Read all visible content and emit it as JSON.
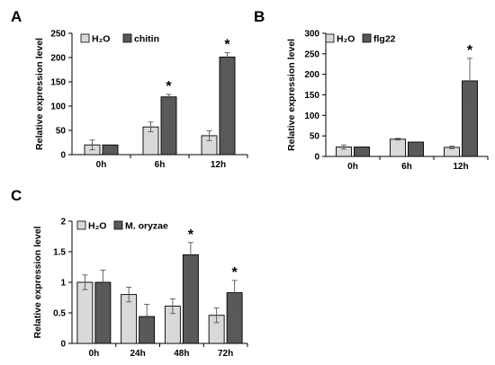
{
  "chart_data": [
    {
      "type": "bar",
      "panel_label": "A",
      "ylabel": "Relative expression level",
      "ylim": [
        0,
        250
      ],
      "yticks": [
        "0",
        "50",
        "100",
        "150",
        "200",
        "250"
      ],
      "categories": [
        "0h",
        "6h",
        "12h"
      ],
      "series": [
        {
          "name": "H₂O",
          "color": "#d9d9d9",
          "values": [
            20,
            57,
            39
          ],
          "errors": [
            10,
            10,
            10
          ]
        },
        {
          "name": "chitin",
          "color": "#595959",
          "values": [
            20,
            119,
            201
          ],
          "errors": [
            0,
            5,
            9
          ]
        }
      ],
      "annotations": [
        {
          "category": "6h",
          "text": "*"
        },
        {
          "category": "12h",
          "text": "*"
        }
      ]
    },
    {
      "type": "bar",
      "panel_label": "B",
      "ylabel": "Relative expression level",
      "ylim": [
        0,
        300
      ],
      "yticks": [
        "0",
        "50",
        "100",
        "150",
        "200",
        "250",
        "300"
      ],
      "categories": [
        "0h",
        "6h",
        "12h"
      ],
      "series": [
        {
          "name": "H₂O",
          "color": "#d9d9d9",
          "values": [
            23,
            42,
            22
          ],
          "errors": [
            5,
            2,
            3
          ]
        },
        {
          "name": "flg22",
          "color": "#595959",
          "values": [
            23,
            35,
            184
          ],
          "errors": [
            0,
            0,
            55
          ]
        }
      ],
      "annotations": [
        {
          "category": "12h",
          "text": "*"
        }
      ]
    },
    {
      "type": "bar",
      "panel_label": "C",
      "ylabel": "Relative expression level",
      "ylim": [
        0,
        2
      ],
      "yticks": [
        "0",
        "0.5",
        "1",
        "1.5",
        "2"
      ],
      "categories": [
        "0h",
        "24h",
        "48h",
        "72h"
      ],
      "series": [
        {
          "name": "H₂O",
          "color": "#d9d9d9",
          "values": [
            1.0,
            0.8,
            0.61,
            0.46
          ],
          "errors": [
            0.12,
            0.12,
            0.12,
            0.12
          ]
        },
        {
          "name": "M. oryzae",
          "color": "#595959",
          "values": [
            1.0,
            0.44,
            1.45,
            0.83
          ],
          "errors": [
            0.2,
            0.2,
            0.2,
            0.2
          ]
        }
      ],
      "annotations": [
        {
          "category": "48h",
          "text": "*"
        },
        {
          "category": "72h",
          "text": "*"
        }
      ]
    }
  ]
}
